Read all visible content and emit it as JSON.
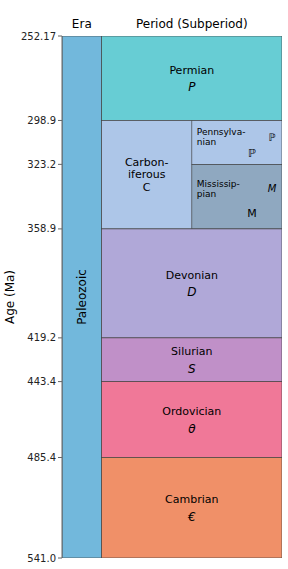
{
  "chart_data": {
    "type": "timeline",
    "ylabel": "Age (Ma)",
    "categories": [
      "Era",
      "Period (Subperiod)"
    ],
    "ylim": [
      252.17,
      541.0
    ],
    "yticks": [
      252.17,
      298.9,
      323.2,
      358.9,
      419.2,
      443.4,
      485.4,
      {
        "value": 541.0,
        "label": "541.0"
      }
    ],
    "era": {
      "name": "Paleozoic",
      "values": [
        252.17,
        541.0
      ],
      "color": "#72b8dc"
    },
    "periods": [
      {
        "name": "Permian",
        "symbol": "P",
        "values": [
          252.17,
          298.9
        ],
        "color": "#67cdd4"
      },
      {
        "name": "Carbon-\niferous\nC",
        "values": [
          298.9,
          358.9
        ],
        "color": "#adc6e8",
        "subperiods": [
          {
            "name": "Pennsylva-\nnian",
            "symbol": "ℙ",
            "values": [
              298.9,
              323.2
            ],
            "color": "#adc6e8"
          },
          {
            "name": "Mississip-\npian",
            "symbol": "M",
            "values": [
              323.2,
              358.9
            ],
            "color": "#8fa8c0"
          }
        ]
      },
      {
        "name": "Devonian",
        "symbol": "D",
        "values": [
          358.9,
          419.2
        ],
        "color": "#b0a8d8"
      },
      {
        "name": "Silurian",
        "symbol": "S",
        "values": [
          419.2,
          443.4
        ],
        "color": "#c090c8"
      },
      {
        "name": "Ordovician",
        "symbol": "θ",
        "values": [
          443.4,
          485.4
        ],
        "color": "#f07898"
      },
      {
        "name": "Cambrian",
        "symbol": "€",
        "values": [
          485.4,
          541.0
        ],
        "color": "#f09068"
      }
    ]
  }
}
